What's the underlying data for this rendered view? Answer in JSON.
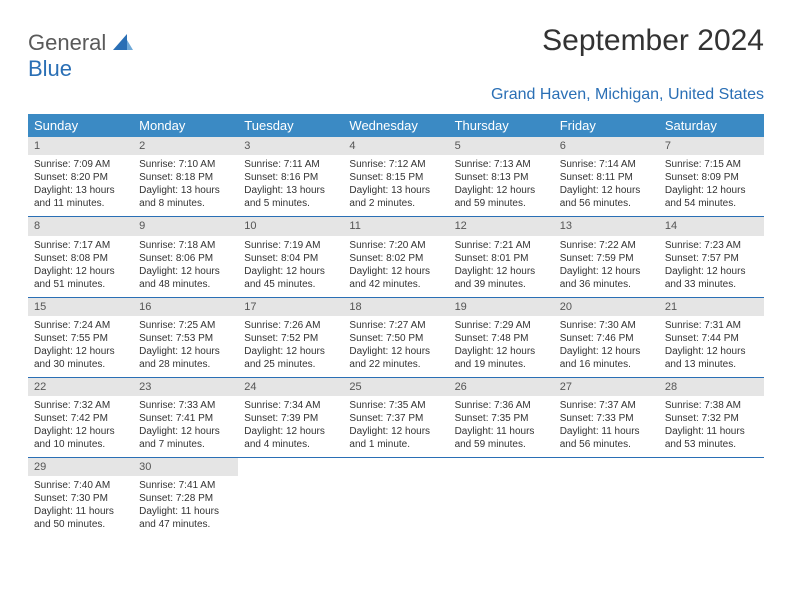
{
  "brand": {
    "part1": "General",
    "part2": "Blue"
  },
  "title": "September 2024",
  "location": "Grand Haven, Michigan, United States",
  "colors": {
    "header_bg": "#3b8ac4",
    "accent": "#2a6fb5",
    "daynum_bg": "#e5e5e5",
    "text": "#333333"
  },
  "weekdays": [
    "Sunday",
    "Monday",
    "Tuesday",
    "Wednesday",
    "Thursday",
    "Friday",
    "Saturday"
  ],
  "weeks": [
    [
      {
        "n": "1",
        "sr": "Sunrise: 7:09 AM",
        "ss": "Sunset: 8:20 PM",
        "dl": "Daylight: 13 hours and 11 minutes."
      },
      {
        "n": "2",
        "sr": "Sunrise: 7:10 AM",
        "ss": "Sunset: 8:18 PM",
        "dl": "Daylight: 13 hours and 8 minutes."
      },
      {
        "n": "3",
        "sr": "Sunrise: 7:11 AM",
        "ss": "Sunset: 8:16 PM",
        "dl": "Daylight: 13 hours and 5 minutes."
      },
      {
        "n": "4",
        "sr": "Sunrise: 7:12 AM",
        "ss": "Sunset: 8:15 PM",
        "dl": "Daylight: 13 hours and 2 minutes."
      },
      {
        "n": "5",
        "sr": "Sunrise: 7:13 AM",
        "ss": "Sunset: 8:13 PM",
        "dl": "Daylight: 12 hours and 59 minutes."
      },
      {
        "n": "6",
        "sr": "Sunrise: 7:14 AM",
        "ss": "Sunset: 8:11 PM",
        "dl": "Daylight: 12 hours and 56 minutes."
      },
      {
        "n": "7",
        "sr": "Sunrise: 7:15 AM",
        "ss": "Sunset: 8:09 PM",
        "dl": "Daylight: 12 hours and 54 minutes."
      }
    ],
    [
      {
        "n": "8",
        "sr": "Sunrise: 7:17 AM",
        "ss": "Sunset: 8:08 PM",
        "dl": "Daylight: 12 hours and 51 minutes."
      },
      {
        "n": "9",
        "sr": "Sunrise: 7:18 AM",
        "ss": "Sunset: 8:06 PM",
        "dl": "Daylight: 12 hours and 48 minutes."
      },
      {
        "n": "10",
        "sr": "Sunrise: 7:19 AM",
        "ss": "Sunset: 8:04 PM",
        "dl": "Daylight: 12 hours and 45 minutes."
      },
      {
        "n": "11",
        "sr": "Sunrise: 7:20 AM",
        "ss": "Sunset: 8:02 PM",
        "dl": "Daylight: 12 hours and 42 minutes."
      },
      {
        "n": "12",
        "sr": "Sunrise: 7:21 AM",
        "ss": "Sunset: 8:01 PM",
        "dl": "Daylight: 12 hours and 39 minutes."
      },
      {
        "n": "13",
        "sr": "Sunrise: 7:22 AM",
        "ss": "Sunset: 7:59 PM",
        "dl": "Daylight: 12 hours and 36 minutes."
      },
      {
        "n": "14",
        "sr": "Sunrise: 7:23 AM",
        "ss": "Sunset: 7:57 PM",
        "dl": "Daylight: 12 hours and 33 minutes."
      }
    ],
    [
      {
        "n": "15",
        "sr": "Sunrise: 7:24 AM",
        "ss": "Sunset: 7:55 PM",
        "dl": "Daylight: 12 hours and 30 minutes."
      },
      {
        "n": "16",
        "sr": "Sunrise: 7:25 AM",
        "ss": "Sunset: 7:53 PM",
        "dl": "Daylight: 12 hours and 28 minutes."
      },
      {
        "n": "17",
        "sr": "Sunrise: 7:26 AM",
        "ss": "Sunset: 7:52 PM",
        "dl": "Daylight: 12 hours and 25 minutes."
      },
      {
        "n": "18",
        "sr": "Sunrise: 7:27 AM",
        "ss": "Sunset: 7:50 PM",
        "dl": "Daylight: 12 hours and 22 minutes."
      },
      {
        "n": "19",
        "sr": "Sunrise: 7:29 AM",
        "ss": "Sunset: 7:48 PM",
        "dl": "Daylight: 12 hours and 19 minutes."
      },
      {
        "n": "20",
        "sr": "Sunrise: 7:30 AM",
        "ss": "Sunset: 7:46 PM",
        "dl": "Daylight: 12 hours and 16 minutes."
      },
      {
        "n": "21",
        "sr": "Sunrise: 7:31 AM",
        "ss": "Sunset: 7:44 PM",
        "dl": "Daylight: 12 hours and 13 minutes."
      }
    ],
    [
      {
        "n": "22",
        "sr": "Sunrise: 7:32 AM",
        "ss": "Sunset: 7:42 PM",
        "dl": "Daylight: 12 hours and 10 minutes."
      },
      {
        "n": "23",
        "sr": "Sunrise: 7:33 AM",
        "ss": "Sunset: 7:41 PM",
        "dl": "Daylight: 12 hours and 7 minutes."
      },
      {
        "n": "24",
        "sr": "Sunrise: 7:34 AM",
        "ss": "Sunset: 7:39 PM",
        "dl": "Daylight: 12 hours and 4 minutes."
      },
      {
        "n": "25",
        "sr": "Sunrise: 7:35 AM",
        "ss": "Sunset: 7:37 PM",
        "dl": "Daylight: 12 hours and 1 minute."
      },
      {
        "n": "26",
        "sr": "Sunrise: 7:36 AM",
        "ss": "Sunset: 7:35 PM",
        "dl": "Daylight: 11 hours and 59 minutes."
      },
      {
        "n": "27",
        "sr": "Sunrise: 7:37 AM",
        "ss": "Sunset: 7:33 PM",
        "dl": "Daylight: 11 hours and 56 minutes."
      },
      {
        "n": "28",
        "sr": "Sunrise: 7:38 AM",
        "ss": "Sunset: 7:32 PM",
        "dl": "Daylight: 11 hours and 53 minutes."
      }
    ],
    [
      {
        "n": "29",
        "sr": "Sunrise: 7:40 AM",
        "ss": "Sunset: 7:30 PM",
        "dl": "Daylight: 11 hours and 50 minutes."
      },
      {
        "n": "30",
        "sr": "Sunrise: 7:41 AM",
        "ss": "Sunset: 7:28 PM",
        "dl": "Daylight: 11 hours and 47 minutes."
      },
      null,
      null,
      null,
      null,
      null
    ]
  ]
}
